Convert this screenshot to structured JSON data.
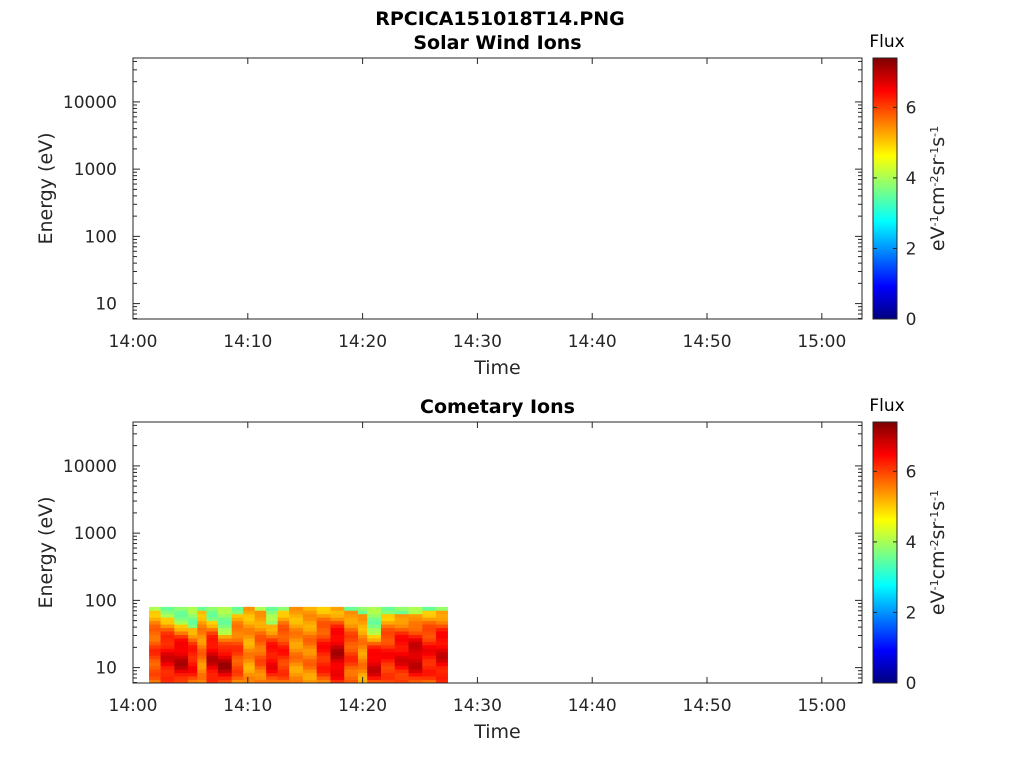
{
  "figure_title": "RPCICA151018T14.PNG",
  "colormap": [
    "#00007f",
    "#0000ff",
    "#007fff",
    "#00ffff",
    "#7fff7f",
    "#ffff00",
    "#ff7f00",
    "#ff0000",
    "#7f0000"
  ],
  "chart_data": [
    {
      "type": "heatmap",
      "title": "Solar Wind Ions",
      "xlabel": "Time",
      "ylabel": "Energy (eV)",
      "x_ticks": [
        "14:00",
        "14:10",
        "14:20",
        "14:30",
        "14:40",
        "14:50",
        "15:00"
      ],
      "x_range_minutes": [
        0,
        63.5
      ],
      "y_ticks": [
        "10",
        "100",
        "1000",
        "10000"
      ],
      "y_scale": "log",
      "y_range": [
        5.9,
        45000
      ],
      "grid": false,
      "colorbar": {
        "title": "Flux",
        "units": "eV-1cm-2sr-1s-1",
        "ticks": [
          "0",
          "2",
          "4",
          "6"
        ],
        "range": [
          0,
          7.4
        ]
      },
      "data_present": false,
      "segments": []
    },
    {
      "type": "heatmap",
      "title": "Cometary Ions",
      "xlabel": "Time",
      "ylabel": "Energy (eV)",
      "x_ticks": [
        "14:00",
        "14:10",
        "14:20",
        "14:30",
        "14:40",
        "14:50",
        "15:00"
      ],
      "x_range_minutes": [
        0,
        63.5
      ],
      "y_ticks": [
        "10",
        "100",
        "1000",
        "10000"
      ],
      "y_scale": "log",
      "y_range": [
        5.9,
        45000
      ],
      "grid": false,
      "colorbar": {
        "title": "Flux",
        "units": "eV-1cm-2sr-1s-1",
        "ticks": [
          "0",
          "2",
          "4",
          "6"
        ],
        "range": [
          0,
          7.4
        ]
      },
      "data_present": true,
      "data_time_range_minutes": [
        1.4,
        27.4
      ],
      "data_energy_range_ev": [
        5.9,
        80
      ],
      "flux_min": 3.8,
      "flux_max": 7.0,
      "segments": [
        {
          "start_min": 1.4,
          "end_min": 2.4,
          "top_ev": 80,
          "green_floor_ev": 70,
          "flux": 6.0
        },
        {
          "start_min": 2.4,
          "end_min": 3.6,
          "top_ev": 80,
          "green_floor_ev": 55,
          "flux": 6.6
        },
        {
          "start_min": 3.6,
          "end_min": 4.8,
          "top_ev": 80,
          "green_floor_ev": 45,
          "flux": 6.9
        },
        {
          "start_min": 4.8,
          "end_min": 5.6,
          "top_ev": 80,
          "green_floor_ev": 40,
          "flux": 6.4
        },
        {
          "start_min": 5.6,
          "end_min": 6.4,
          "top_ev": 80,
          "green_floor_ev": 75,
          "flux": 5.6
        },
        {
          "start_min": 6.4,
          "end_min": 7.4,
          "top_ev": 80,
          "green_floor_ev": 50,
          "flux": 6.8
        },
        {
          "start_min": 7.4,
          "end_min": 8.6,
          "top_ev": 80,
          "green_floor_ev": 30,
          "flux": 7.0
        },
        {
          "start_min": 8.6,
          "end_min": 9.6,
          "top_ev": 80,
          "green_floor_ev": 60,
          "flux": 6.0
        },
        {
          "start_min": 9.6,
          "end_min": 10.6,
          "top_ev": 80,
          "green_floor_ev": 78,
          "flux": 5.4
        },
        {
          "start_min": 10.6,
          "end_min": 11.6,
          "top_ev": 80,
          "green_floor_ev": 70,
          "flux": 5.8
        },
        {
          "start_min": 11.6,
          "end_min": 12.6,
          "top_ev": 80,
          "green_floor_ev": 45,
          "flux": 6.5
        },
        {
          "start_min": 12.6,
          "end_min": 13.6,
          "top_ev": 80,
          "green_floor_ev": 70,
          "flux": 6.2
        },
        {
          "start_min": 13.6,
          "end_min": 14.8,
          "top_ev": 80,
          "green_floor_ev": 78,
          "flux": 5.5
        },
        {
          "start_min": 14.8,
          "end_min": 16.0,
          "top_ev": 80,
          "green_floor_ev": 78,
          "flux": 5.6
        },
        {
          "start_min": 16.0,
          "end_min": 17.2,
          "top_ev": 80,
          "green_floor_ev": 78,
          "flux": 6.3
        },
        {
          "start_min": 17.2,
          "end_min": 18.4,
          "top_ev": 80,
          "green_floor_ev": 78,
          "flux": 6.9
        },
        {
          "start_min": 18.4,
          "end_min": 19.6,
          "top_ev": 80,
          "green_floor_ev": 75,
          "flux": 6.0
        },
        {
          "start_min": 19.6,
          "end_min": 20.4,
          "top_ev": 80,
          "green_floor_ev": 65,
          "flux": 5.5
        },
        {
          "start_min": 20.4,
          "end_min": 21.6,
          "top_ev": 80,
          "green_floor_ev": 30,
          "flux": 6.8
        },
        {
          "start_min": 21.6,
          "end_min": 22.8,
          "top_ev": 80,
          "green_floor_ev": 60,
          "flux": 6.3
        },
        {
          "start_min": 22.8,
          "end_min": 24.0,
          "top_ev": 80,
          "green_floor_ev": 65,
          "flux": 6.6
        },
        {
          "start_min": 24.0,
          "end_min": 25.2,
          "top_ev": 80,
          "green_floor_ev": 60,
          "flux": 6.9
        },
        {
          "start_min": 25.2,
          "end_min": 26.4,
          "top_ev": 80,
          "green_floor_ev": 70,
          "flux": 6.4
        },
        {
          "start_min": 26.4,
          "end_min": 27.4,
          "top_ev": 80,
          "green_floor_ev": 75,
          "flux": 6.7
        }
      ]
    }
  ]
}
